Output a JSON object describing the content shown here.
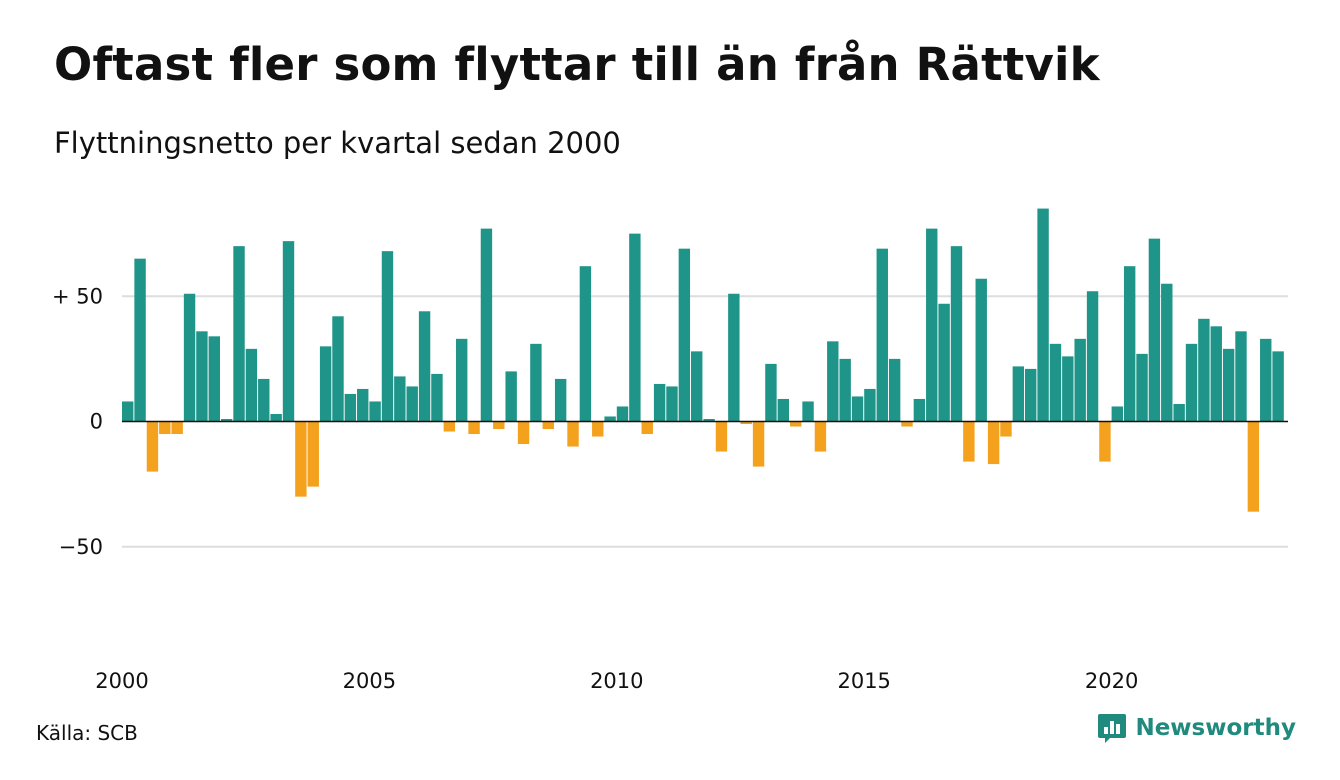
{
  "header": {
    "title": "Oftast fler som flyttar till än från Rättvik",
    "subtitle": "Flyttningsnetto per kvartal sedan 2000"
  },
  "footer": {
    "source": "Källa: SCB",
    "brand": "Newsworthy",
    "brand_icon": "chart-logo-icon"
  },
  "colors": {
    "positive": "#1f9488",
    "negative": "#f4a11d",
    "gridline": "#dddddd",
    "zero_line": "#111111",
    "brand": "#1f8a7d"
  },
  "chart_data": {
    "type": "bar",
    "title": "Oftast fler som flyttar till än från Rättvik",
    "subtitle": "Flyttningsnetto per kvartal sedan 2000",
    "x_start": "2000 Q1",
    "x_tick_labels": [
      "2000",
      "2005",
      "2010",
      "2015",
      "2020"
    ],
    "y_ticks": [
      {
        "value": 50,
        "label": "+ 50"
      },
      {
        "value": 0,
        "label": "0"
      },
      {
        "value": -50,
        "label": "−50"
      }
    ],
    "ylim": [
      -82,
      88
    ],
    "grid": true,
    "values": [
      8,
      65,
      -20,
      -5,
      -5,
      51,
      36,
      34,
      1,
      70,
      29,
      17,
      3,
      72,
      -30,
      -26,
      30,
      42,
      11,
      13,
      8,
      68,
      18,
      14,
      44,
      19,
      -4,
      33,
      -5,
      77,
      -3,
      20,
      -9,
      31,
      -3,
      17,
      -10,
      62,
      -6,
      2,
      6,
      75,
      -5,
      15,
      14,
      69,
      28,
      1,
      -12,
      51,
      -1,
      -18,
      23,
      9,
      -2,
      8,
      -12,
      32,
      25,
      10,
      13,
      69,
      25,
      -2,
      9,
      77,
      47,
      70,
      -16,
      57,
      -17,
      -6,
      22,
      21,
      85,
      31,
      26,
      33,
      52,
      -16,
      6,
      62,
      27,
      73,
      55,
      7,
      31,
      41,
      38,
      29,
      36,
      -36,
      33,
      28
    ]
  }
}
